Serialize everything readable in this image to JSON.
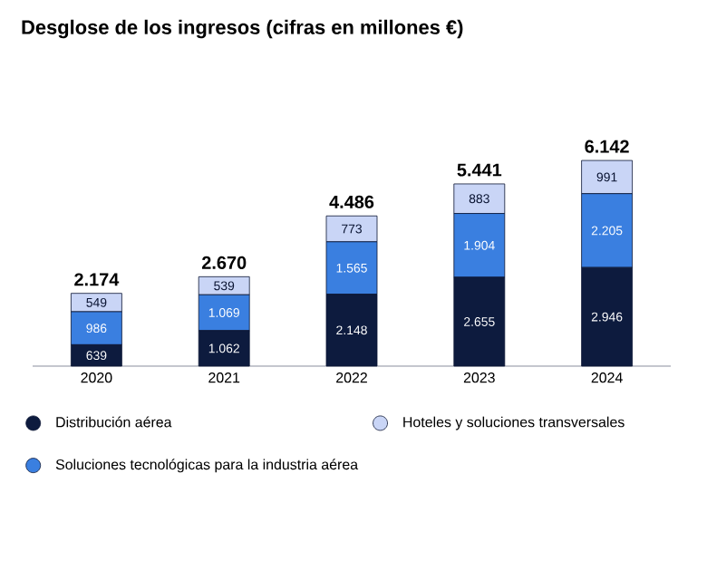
{
  "chart_data": {
    "type": "bar",
    "title": "Desglose de los ingresos (cifras en millones €)",
    "categories": [
      "2020",
      "2021",
      "2022",
      "2023",
      "2024"
    ],
    "stacked": true,
    "series": [
      {
        "name": "Distribución aérea",
        "color": "#0d1b3e",
        "values": [
          639,
          1062,
          2148,
          2655,
          2946
        ],
        "value_labels": [
          "639",
          "1.062",
          "2.148",
          "2.655",
          "2.946"
        ]
      },
      {
        "name": "Soluciones tecnológicas para la industria aérea",
        "color": "#3a7fe0",
        "values": [
          986,
          1069,
          1565,
          1904,
          2205
        ],
        "value_labels": [
          "986",
          "1.069",
          "1.565",
          "1.904",
          "2.205"
        ]
      },
      {
        "name": "Hoteles y soluciones transversales",
        "color": "#c9d5f6",
        "values": [
          549,
          539,
          773,
          883,
          991
        ],
        "value_labels": [
          "549",
          "539",
          "773",
          "883",
          "991"
        ]
      }
    ],
    "totals": [
      "2.174",
      "2.670",
      "4.486",
      "5.441",
      "6.142"
    ],
    "legend": "bottom"
  }
}
